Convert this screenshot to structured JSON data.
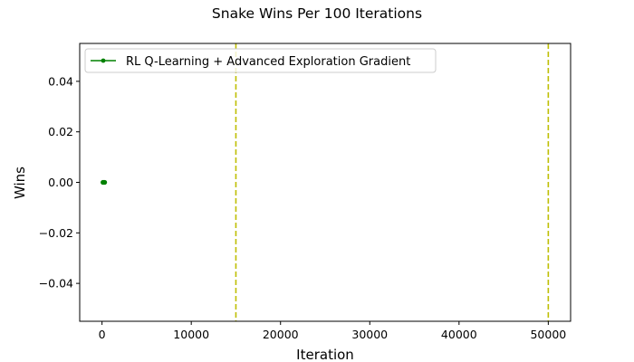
{
  "chart_data": {
    "type": "line",
    "title": "Snake Wins Per 100 Iterations",
    "xlabel": "Iteration",
    "ylabel": "Wins",
    "xlim": [
      -2500,
      52500
    ],
    "ylim": [
      -0.055,
      0.055
    ],
    "x_ticks": [
      0,
      10000,
      20000,
      30000,
      40000,
      50000
    ],
    "y_ticks": [
      -0.04,
      -0.02,
      0.0,
      0.02,
      0.04
    ],
    "x_tick_labels": [
      "0",
      "10000",
      "20000",
      "30000",
      "40000",
      "50000"
    ],
    "y_tick_labels": [
      "−0.04",
      "−0.02",
      "0.00",
      "0.02",
      "0.04"
    ],
    "grid": false,
    "legend_placement": "upper-left",
    "series": [
      {
        "name": "RL Q-Learning + Advanced Exploration Gradient",
        "color": "#008000",
        "marker": "point",
        "x": [
          100,
          200,
          300
        ],
        "y": [
          0,
          0,
          0
        ]
      }
    ],
    "vlines": [
      {
        "x": 15000,
        "color": "#bfbf00",
        "style": "dashed"
      },
      {
        "x": 50000,
        "color": "#bfbf00",
        "style": "dashed"
      }
    ]
  }
}
